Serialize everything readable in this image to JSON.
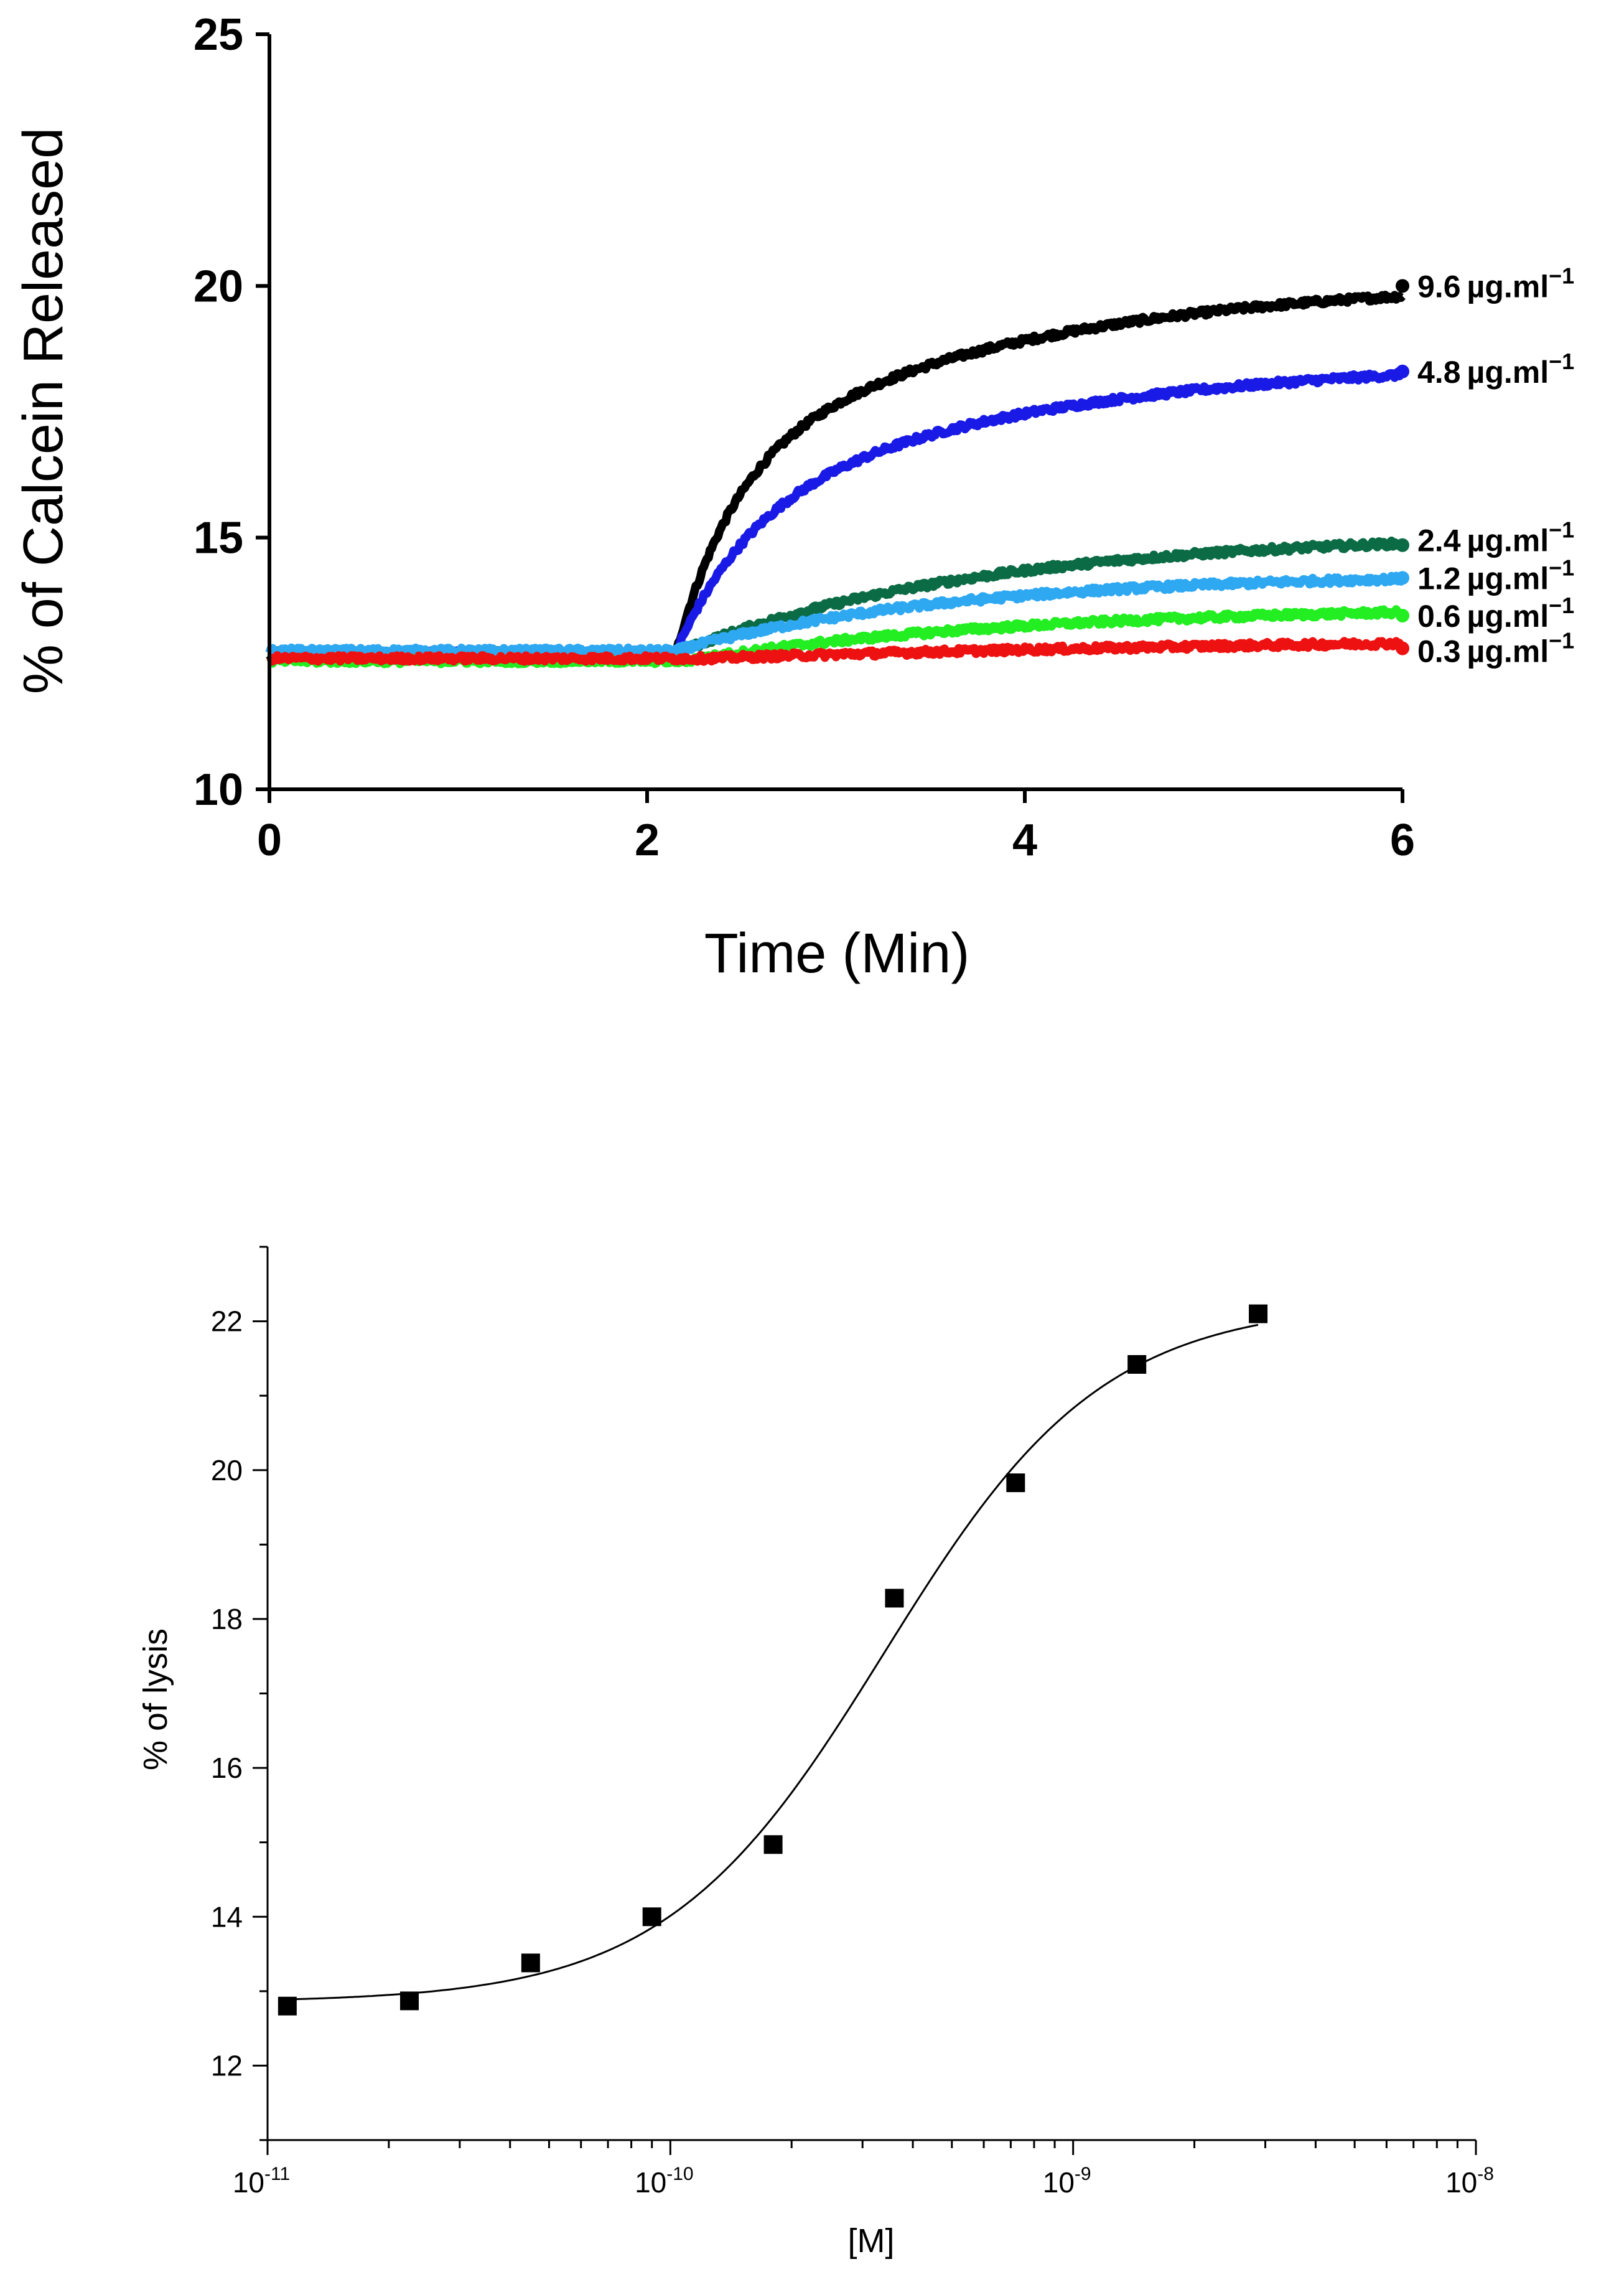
{
  "chart_data": [
    {
      "type": "line",
      "title": "",
      "xlabel": "Time (Min)",
      "ylabel": "% of Calcein Released",
      "xlim": [
        0,
        6
      ],
      "ylim": [
        10,
        25
      ],
      "xticks": [
        "0",
        "2",
        "4",
        "6"
      ],
      "yticks": [
        "10",
        "15",
        "20",
        "25"
      ],
      "unit": "µg.ml",
      "unit_exp": "−1",
      "series": [
        {
          "name": "9.6",
          "color": "#000000",
          "baseline": 12.65,
          "onset": 2.15,
          "fast_amp": 3.6,
          "fast_tau": 0.3,
          "slow_amp": 3.9,
          "slow_tau": 1.6,
          "final": 20.0
        },
        {
          "name": "4.8",
          "color": "#1a1ae6",
          "baseline": 12.7,
          "onset": 2.15,
          "fast_amp": 2.8,
          "fast_tau": 0.4,
          "slow_amp": 3.1,
          "slow_tau": 1.8,
          "final": 18.3
        },
        {
          "name": "2.4",
          "color": "#0b6b45",
          "baseline": 12.7,
          "onset": 2.15,
          "fast_amp": 0.0,
          "fast_tau": 0.5,
          "slow_amp": 2.4,
          "slow_tau": 1.6,
          "final": 14.85
        },
        {
          "name": "1.2",
          "color": "#2fa8f2",
          "baseline": 12.75,
          "onset": 2.15,
          "fast_amp": 0.0,
          "fast_tau": 0.5,
          "slow_amp": 1.55,
          "slow_tau": 1.5,
          "final": 14.2
        },
        {
          "name": "0.6",
          "color": "#22ee22",
          "baseline": 12.55,
          "onset": 2.2,
          "fast_amp": 0.0,
          "fast_tau": 0.5,
          "slow_amp": 1.1,
          "slow_tau": 1.8,
          "final": 13.45
        },
        {
          "name": "0.3",
          "color": "#ee1111",
          "baseline": 12.6,
          "onset": 2.3,
          "fast_amp": 0.0,
          "fast_tau": 1.0,
          "slow_amp": 0.5,
          "slow_tau": 4.0,
          "final": 12.8
        }
      ]
    },
    {
      "type": "scatter",
      "title": "",
      "xlabel": "[M]",
      "ylabel": "% of lysis",
      "xscale": "log",
      "xlim": [
        1e-11,
        1e-08
      ],
      "ylim": [
        11,
        23
      ],
      "yticks": [
        "12",
        "14",
        "16",
        "18",
        "20",
        "22"
      ],
      "xtick_base": "10",
      "xtick_exps": [
        "-11",
        "-10",
        "-9",
        "-8"
      ],
      "marker_color": "#000000",
      "points": [
        {
          "x": 1.12e-11,
          "y": 12.8
        },
        {
          "x": 2.25e-11,
          "y": 12.87
        },
        {
          "x": 4.5e-11,
          "y": 13.38
        },
        {
          "x": 9e-11,
          "y": 14.0
        },
        {
          "x": 1.8e-10,
          "y": 14.97
        },
        {
          "x": 3.6e-10,
          "y": 18.28
        },
        {
          "x": 7.2e-10,
          "y": 19.83
        },
        {
          "x": 1.44e-09,
          "y": 21.42
        },
        {
          "x": 2.88e-09,
          "y": 22.1
        }
      ],
      "fit": {
        "model": "sigmoid",
        "bottom": 12.85,
        "top": 22.25,
        "ec50": 3.4e-10,
        "hill": 1.6
      }
    }
  ]
}
